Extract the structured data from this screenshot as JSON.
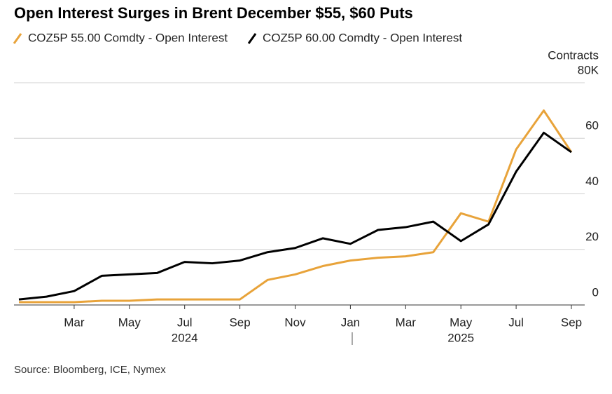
{
  "chart_data": {
    "type": "line",
    "title": "Open Interest Surges in Brent December $55, $60 Puts",
    "source": "Source: Bloomberg, ICE, Nymex",
    "y_axis_label": "Contracts",
    "x": [
      "2024-01",
      "2024-02",
      "2024-03",
      "2024-04",
      "2024-05",
      "2024-06",
      "2024-07",
      "2024-08",
      "2024-09",
      "2024-10",
      "2024-11",
      "2024-12",
      "2025-01",
      "2025-02",
      "2025-03",
      "2025-04",
      "2025-05",
      "2025-06",
      "2025-07",
      "2025-08",
      "2025-09"
    ],
    "series": [
      {
        "name": "COZ5P 55.00 Comdty - Open Interest",
        "color": "#e8a33a",
        "values": [
          1,
          1,
          1,
          1.5,
          1.5,
          2,
          2,
          2,
          2,
          9,
          11,
          14,
          16,
          17,
          17.5,
          19,
          33,
          30,
          56,
          70,
          55
        ]
      },
      {
        "name": "COZ5P 60.00 Comdty - Open Interest",
        "color": "#000000",
        "values": [
          2,
          3,
          5,
          10.5,
          11,
          11.5,
          15.5,
          15,
          16,
          19,
          20.5,
          24,
          22,
          27,
          28,
          30,
          23,
          29,
          48,
          62,
          55
        ]
      }
    ],
    "xlim": [
      "2024-01",
      "2025-09"
    ],
    "xticks": [
      {
        "value": "2024-03",
        "label": "Mar"
      },
      {
        "value": "2024-05",
        "label": "May"
      },
      {
        "value": "2024-07",
        "label": "Jul"
      },
      {
        "value": "2024-09",
        "label": "Sep"
      },
      {
        "value": "2024-11",
        "label": "Nov"
      },
      {
        "value": "2025-01",
        "label": "Jan"
      },
      {
        "value": "2025-03",
        "label": "Mar"
      },
      {
        "value": "2025-05",
        "label": "May"
      },
      {
        "value": "2025-07",
        "label": "Jul"
      },
      {
        "value": "2025-09",
        "label": "Sep"
      }
    ],
    "year_labels": [
      {
        "value": "2024-07",
        "label": "2024"
      },
      {
        "value": "2025-05",
        "label": "2025"
      }
    ],
    "ylim": [
      0,
      80
    ],
    "yticks": [
      0,
      20,
      40,
      60,
      {
        "value": 80,
        "label": "80K"
      }
    ],
    "grid": true
  }
}
